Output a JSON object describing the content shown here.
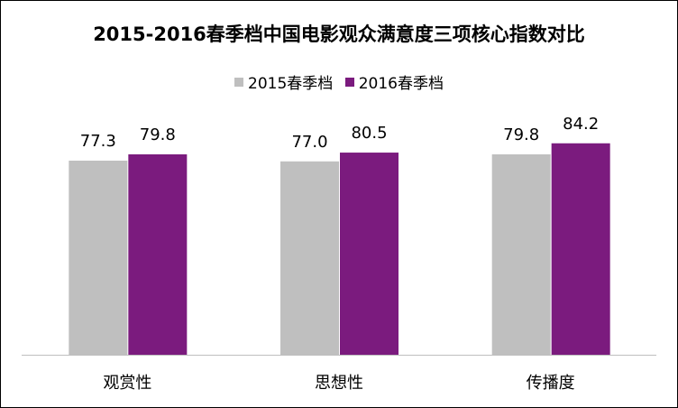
{
  "chart_data": {
    "type": "bar",
    "title": "2015-2016春季档中国电影观众满意度三项核心指数对比",
    "categories": [
      "观赏性",
      "思想性",
      "传播度"
    ],
    "series": [
      {
        "name": "2015春季档",
        "values": [
          77.3,
          77.0,
          79.8
        ],
        "color": "#bfbfbf"
      },
      {
        "name": "2016春季档",
        "values": [
          79.8,
          80.5,
          84.2
        ],
        "color": "#7b1b7e"
      }
    ],
    "data_labels": [
      "77.3",
      "79.8",
      "77.0",
      "80.5",
      "79.8",
      "84.2"
    ],
    "ylim": [
      0,
      88
    ],
    "grid": false,
    "legend_position": "top"
  }
}
